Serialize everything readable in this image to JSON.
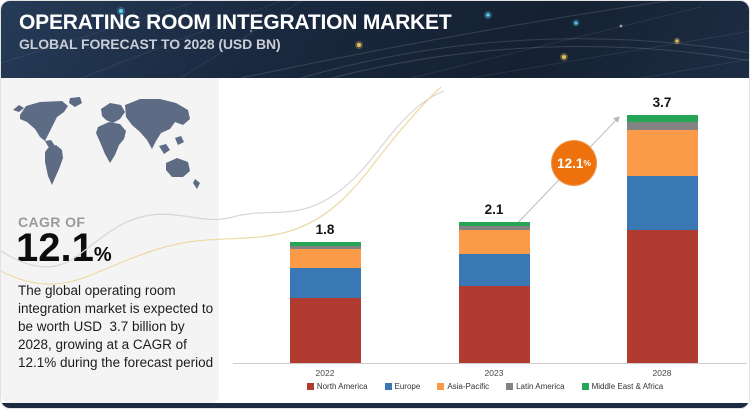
{
  "header": {
    "title": "OPERATING ROOM INTEGRATION MARKET",
    "subtitle": "GLOBAL FORECAST TO 2028 (USD BN)",
    "bg_color": "#1a2940"
  },
  "sidebar": {
    "cagr_label": "CAGR OF",
    "cagr_value": "12.1",
    "cagr_percent_sign": "%",
    "description": "The global operating room integration market is expected to be worth USD  3.7 billion by 2028, growing at a CAGR of 12.1% during the forecast period",
    "map_color": "#5d6b85",
    "bg_color": "#f4f4f4"
  },
  "chart_data": {
    "type": "bar",
    "stacked": true,
    "title": "Operating Room Integration Market, Global Forecast to 2028 (USD BN)",
    "categories": [
      "2022",
      "2023",
      "2028"
    ],
    "totals": [
      1.8,
      2.1,
      3.7
    ],
    "total_labels": [
      "1.8",
      "2.1",
      "3.7"
    ],
    "series": [
      {
        "name": "North America",
        "color": "#b23b31",
        "values": [
          0.97,
          1.15,
          1.98
        ]
      },
      {
        "name": "Europe",
        "color": "#3a78b5",
        "values": [
          0.45,
          0.48,
          0.81
        ]
      },
      {
        "name": "Asia-Pacific",
        "color": "#fb9a49",
        "values": [
          0.28,
          0.36,
          0.69
        ]
      },
      {
        "name": "Latin America",
        "color": "#838383",
        "values": [
          0.04,
          0.06,
          0.12
        ]
      },
      {
        "name": "Middle East & Africa",
        "color": "#27a557",
        "values": [
          0.06,
          0.05,
          0.1
        ]
      }
    ],
    "growth_badge": {
      "value": "12.1",
      "suffix": "%",
      "color": "#ed720d"
    },
    "ylim": [
      0,
      3.85
    ],
    "grid": false,
    "legend_position": "bottom",
    "unit": "USD BN"
  }
}
